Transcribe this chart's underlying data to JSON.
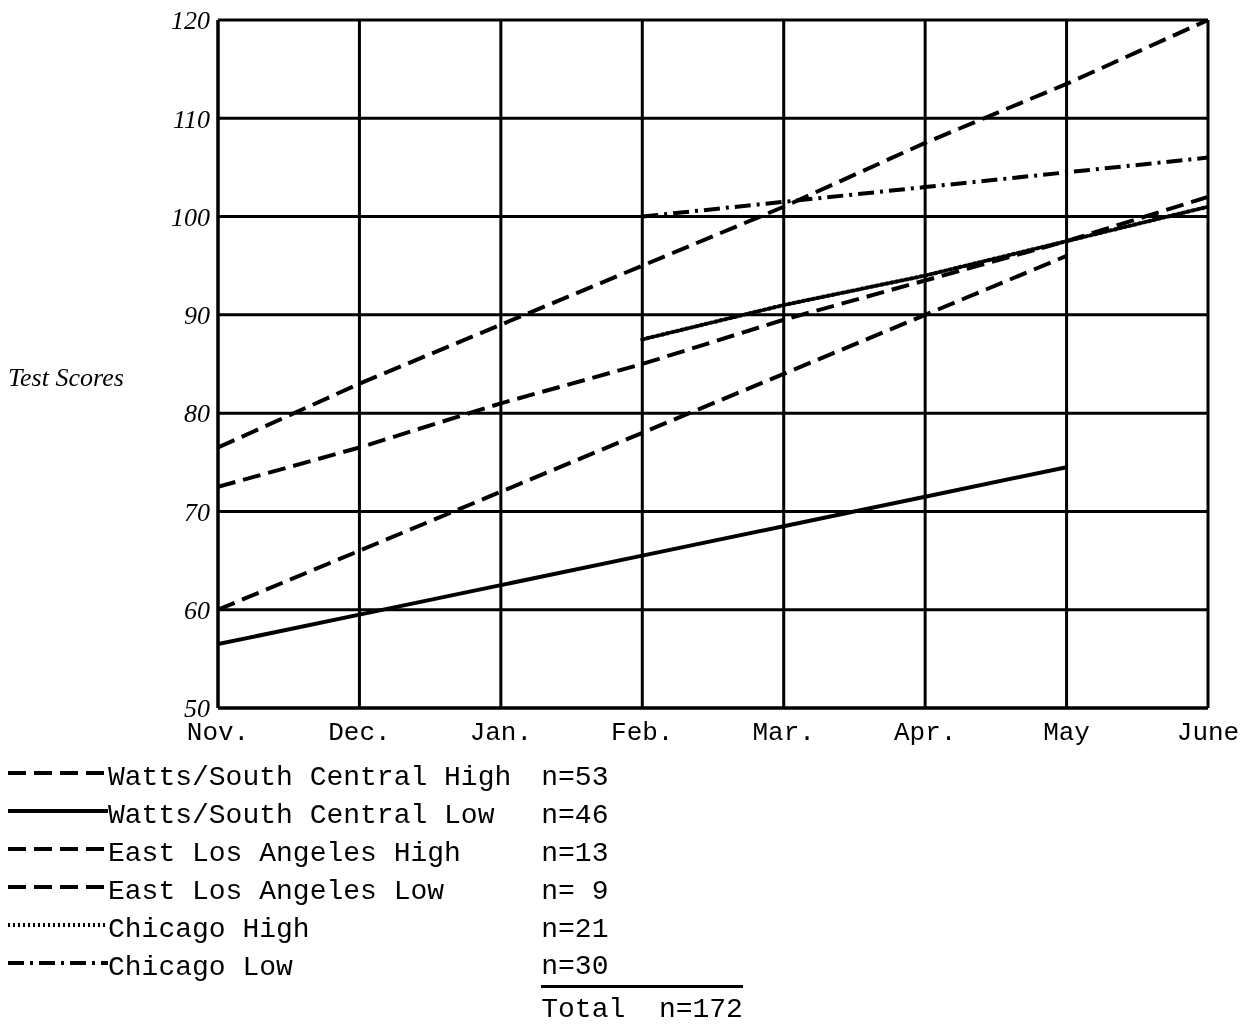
{
  "chart_data": {
    "type": "line",
    "ylabel": "Test Scores",
    "categories": [
      "Nov.",
      "Dec.",
      "Jan.",
      "Feb.",
      "Mar.",
      "Apr.",
      "May",
      "June"
    ],
    "ylim": [
      50,
      120
    ],
    "yticks": [
      50,
      60,
      70,
      80,
      90,
      100,
      110,
      120
    ],
    "grid": true,
    "legend": "bottom",
    "marker": "none",
    "series": [
      {
        "name": "Watts/South Central High",
        "color": "#000000",
        "line_style": "dashed",
        "values": [
          72.5,
          76.5,
          81,
          85,
          89.5,
          93.5,
          97.5,
          102
        ]
      },
      {
        "name": "Watts/South Central Low",
        "color": "#000000",
        "line_style": "solid",
        "values": [
          56.5,
          59.5,
          62.5,
          65.5,
          68.5,
          71.5,
          74.5,
          null
        ]
      },
      {
        "name": "East Los Angeles High",
        "color": "#000000",
        "line_style": "dashed",
        "values": [
          76.5,
          83,
          89,
          95,
          101,
          107.5,
          113.5,
          120
        ]
      },
      {
        "name": "East Los Angeles Low",
        "color": "#000000",
        "line_style": "dashed",
        "values": [
          60,
          66,
          72,
          78,
          84,
          90,
          96,
          null
        ]
      },
      {
        "name": "Chicago High",
        "color": "#000000",
        "line_style": "dotted",
        "values": [
          null,
          null,
          null,
          87.5,
          91,
          94,
          97.5,
          101
        ]
      },
      {
        "name": "Chicago Low",
        "color": "#000000",
        "line_style": "dashdot",
        "values": [
          null,
          null,
          null,
          100,
          101.5,
          103,
          104.5,
          106
        ]
      }
    ],
    "annotations": [
      "n=53",
      "n=46",
      "n=13",
      "n= 9",
      "n=21",
      "n=30",
      "Total  n=172"
    ]
  }
}
